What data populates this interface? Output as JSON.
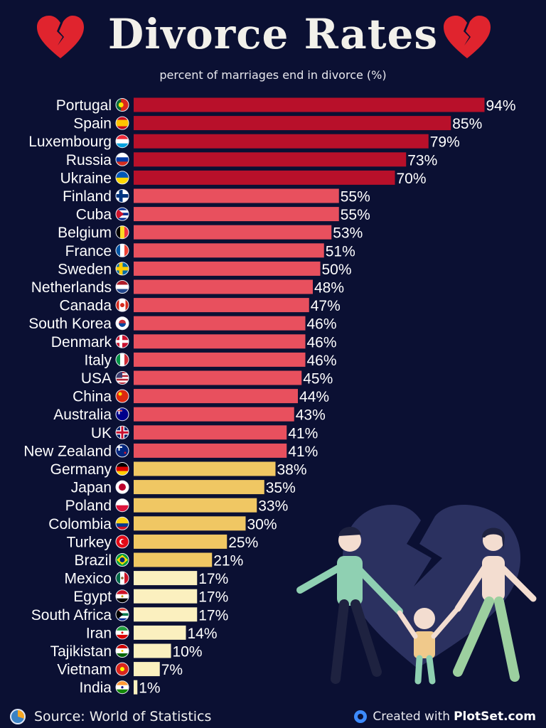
{
  "header": {
    "title": "Divorce Rates",
    "subtitle": "percent of marriages end in divorce (%)",
    "title_icon": "broken-heart-icon"
  },
  "footer": {
    "source": "Source: World of Statistics",
    "credit_prefix": "Created with",
    "credit_brand": "PlotSet.com"
  },
  "colors": {
    "background": "#0b1033",
    "tier_high": "#b8102a",
    "tier_mid": "#e8505e",
    "tier_low": "#f0c763",
    "tier_lowest": "#fbf0bf"
  },
  "chart_data": {
    "type": "bar",
    "orientation": "horizontal",
    "title": "Divorce Rates",
    "subtitle": "percent of marriages end in divorce (%)",
    "xlim": [
      0,
      100
    ],
    "grid": false,
    "categories": [
      "Portugal",
      "Spain",
      "Luxembourg",
      "Russia",
      "Ukraine",
      "Finland",
      "Cuba",
      "Belgium",
      "France",
      "Sweden",
      "Netherlands",
      "Canada",
      "South Korea",
      "Denmark",
      "Italy",
      "USA",
      "China",
      "Australia",
      "UK",
      "New Zealand",
      "Germany",
      "Japan",
      "Poland",
      "Colombia",
      "Turkey",
      "Brazil",
      "Mexico",
      "Egypt",
      "South Africa",
      "Iran",
      "Tajikistan",
      "Vietnam",
      "India"
    ],
    "values": [
      94,
      85,
      79,
      73,
      70,
      55,
      55,
      53,
      51,
      50,
      48,
      47,
      46,
      46,
      46,
      45,
      44,
      43,
      41,
      41,
      38,
      35,
      33,
      30,
      25,
      21,
      17,
      17,
      17,
      14,
      10,
      7,
      1
    ],
    "labels": [
      "94%",
      "85%",
      "79%",
      "73%",
      "70%",
      "55%",
      "55%",
      "53%",
      "51%",
      "50%",
      "48%",
      "47%",
      "46%",
      "46%",
      "46%",
      "45%",
      "44%",
      "43%",
      "41%",
      "41%",
      "38%",
      "35%",
      "33%",
      "30%",
      "25%",
      "21%",
      "17%",
      "17%",
      "17%",
      "14%",
      "10%",
      "7%",
      "1%"
    ],
    "tiers": [
      "high",
      "high",
      "high",
      "high",
      "high",
      "mid",
      "mid",
      "mid",
      "mid",
      "mid",
      "mid",
      "mid",
      "mid",
      "mid",
      "mid",
      "mid",
      "mid",
      "mid",
      "mid",
      "mid",
      "low",
      "low",
      "low",
      "low",
      "low",
      "low",
      "lowest",
      "lowest",
      "lowest",
      "lowest",
      "lowest",
      "lowest",
      "lowest"
    ],
    "flags": [
      "flag-portugal",
      "flag-spain",
      "flag-luxembourg",
      "flag-russia",
      "flag-ukraine",
      "flag-finland",
      "flag-cuba",
      "flag-belgium",
      "flag-france",
      "flag-sweden",
      "flag-netherlands",
      "flag-canada",
      "flag-south-korea",
      "flag-denmark",
      "flag-italy",
      "flag-usa",
      "flag-china",
      "flag-australia",
      "flag-uk",
      "flag-new-zealand",
      "flag-germany",
      "flag-japan",
      "flag-poland",
      "flag-colombia",
      "flag-turkey",
      "flag-brazil",
      "flag-mexico",
      "flag-egypt",
      "flag-south-africa",
      "flag-iran",
      "flag-tajikistan",
      "flag-vietnam",
      "flag-india"
    ]
  }
}
